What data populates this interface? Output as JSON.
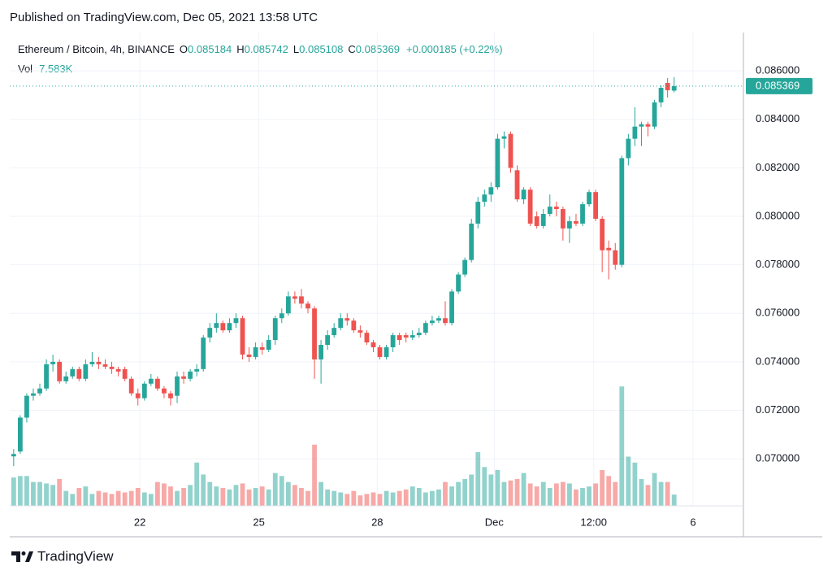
{
  "header": {
    "published": "Published on TradingView.com, Dec 05, 2021 13:58 UTC",
    "brand": "TradingView"
  },
  "chart_data": {
    "type": "candlestick",
    "legend": {
      "symbol": "Ethereum / Bitcoin, 4h, BINANCE",
      "open_label": "O",
      "open": 0.085184,
      "high_label": "H",
      "high": 0.085742,
      "low_label": "L",
      "low": 0.085108,
      "close_label": "C",
      "close": 0.085369,
      "change": "+0.000185 (+0.22%)",
      "volume_label": "Vol",
      "volume": "7.583K"
    },
    "up_color": "#26a69a",
    "down_color": "#ef5350",
    "xlim": [
      -0.6,
      111.6
    ],
    "xticks": [
      {
        "value": 19.3,
        "label": "22"
      },
      {
        "value": 37.5,
        "label": "25"
      },
      {
        "value": 55.6,
        "label": "28"
      },
      {
        "value": 73.5,
        "label": "Dec"
      },
      {
        "value": 88.7,
        "label": "12:00"
      },
      {
        "value": 103.9,
        "label": "6"
      }
    ],
    "ylim": [
      0.06806,
      0.08758
    ],
    "yticks": [
      {
        "value": 0.07,
        "label": "0.070000"
      },
      {
        "value": 0.072,
        "label": "0.072000"
      },
      {
        "value": 0.074,
        "label": "0.074000"
      },
      {
        "value": 0.076,
        "label": "0.076000"
      },
      {
        "value": 0.078,
        "label": "0.078000"
      },
      {
        "value": 0.08,
        "label": "0.080000"
      },
      {
        "value": 0.082,
        "label": "0.082000"
      },
      {
        "value": 0.084,
        "label": "0.084000"
      },
      {
        "value": 0.086,
        "label": "0.086000"
      }
    ],
    "grid": true,
    "volume_ylim": [
      0,
      85
    ],
    "open": [
      0.0701,
      0.0703,
      0.0717,
      0.0726,
      0.0727,
      0.0729,
      0.0739,
      0.074,
      0.0732,
      0.0734,
      0.0737,
      0.0733,
      0.0739,
      0.074,
      0.0739,
      0.0738,
      0.0737,
      0.0737,
      0.0733,
      0.0727,
      0.0725,
      0.0731,
      0.0733,
      0.0729,
      0.0727,
      0.0726,
      0.0734,
      0.0733,
      0.0736,
      0.0737,
      0.075,
      0.0754,
      0.0756,
      0.0753,
      0.0756,
      0.0758,
      0.0743,
      0.0742,
      0.0746,
      0.0745,
      0.0749,
      0.0758,
      0.076,
      0.0767,
      0.0767,
      0.0764,
      0.0762,
      0.0741,
      0.0747,
      0.0751,
      0.0754,
      0.0758,
      0.0757,
      0.0753,
      0.0752,
      0.0748,
      0.0746,
      0.0742,
      0.0746,
      0.0751,
      0.0751,
      0.075,
      0.0751,
      0.0752,
      0.0756,
      0.0757,
      0.0758,
      0.0756,
      0.0769,
      0.0776,
      0.0782,
      0.0797,
      0.0806,
      0.0809,
      0.0812,
      0.0832,
      0.0834,
      0.0819,
      0.0807,
      0.0811,
      0.08,
      0.0796,
      0.0801,
      0.0804,
      0.0803,
      0.0795,
      0.0798,
      0.0797,
      0.0805,
      0.081,
      0.0799,
      0.0787,
      0.0786,
      0.078,
      0.0824,
      0.0832,
      0.0837,
      0.0838,
      0.0837,
      0.0847,
      0.0855,
      0.085184
    ],
    "high": [
      0.0704,
      0.0718,
      0.0727,
      0.0729,
      0.0731,
      0.0741,
      0.0743,
      0.0741,
      0.0736,
      0.0738,
      0.0738,
      0.0741,
      0.0744,
      0.0742,
      0.0741,
      0.074,
      0.0738,
      0.0738,
      0.0734,
      0.0729,
      0.0732,
      0.0735,
      0.0734,
      0.073,
      0.0728,
      0.0736,
      0.0736,
      0.0737,
      0.0739,
      0.0751,
      0.0756,
      0.076,
      0.0757,
      0.0758,
      0.076,
      0.0759,
      0.0746,
      0.0748,
      0.0748,
      0.0751,
      0.0759,
      0.0762,
      0.0769,
      0.0769,
      0.077,
      0.0765,
      0.0763,
      0.0749,
      0.0753,
      0.0756,
      0.076,
      0.076,
      0.0758,
      0.0755,
      0.0753,
      0.0749,
      0.0747,
      0.0747,
      0.0752,
      0.0752,
      0.0752,
      0.0753,
      0.0754,
      0.0757,
      0.0759,
      0.0759,
      0.0765,
      0.077,
      0.0777,
      0.0783,
      0.0799,
      0.0808,
      0.0811,
      0.0814,
      0.0834,
      0.0835,
      0.0835,
      0.0821,
      0.0812,
      0.0812,
      0.0802,
      0.0803,
      0.0809,
      0.0806,
      0.0804,
      0.08,
      0.0801,
      0.0806,
      0.0811,
      0.0811,
      0.08,
      0.079,
      0.0789,
      0.0825,
      0.0834,
      0.0845,
      0.0839,
      0.0839,
      0.0848,
      0.0854,
      0.0857,
      0.085742
    ],
    "low": [
      0.0697,
      0.0702,
      0.0715,
      0.0724,
      0.0726,
      0.0728,
      0.0736,
      0.0731,
      0.0731,
      0.0733,
      0.0732,
      0.0732,
      0.0738,
      0.0737,
      0.0737,
      0.0735,
      0.0734,
      0.0732,
      0.0726,
      0.0722,
      0.0724,
      0.073,
      0.0728,
      0.0725,
      0.0722,
      0.0723,
      0.0731,
      0.0732,
      0.0734,
      0.0736,
      0.0748,
      0.0752,
      0.0752,
      0.0752,
      0.0754,
      0.0741,
      0.074,
      0.0741,
      0.0743,
      0.0744,
      0.0747,
      0.0756,
      0.0759,
      0.0764,
      0.0762,
      0.076,
      0.0733,
      0.0731,
      0.0745,
      0.075,
      0.0753,
      0.0755,
      0.0752,
      0.075,
      0.0747,
      0.0744,
      0.0741,
      0.0741,
      0.0744,
      0.0747,
      0.0748,
      0.0749,
      0.075,
      0.0751,
      0.0755,
      0.0756,
      0.0755,
      0.0755,
      0.0768,
      0.0775,
      0.0781,
      0.0795,
      0.0804,
      0.0806,
      0.0811,
      0.0828,
      0.0818,
      0.0806,
      0.0805,
      0.0796,
      0.0795,
      0.0795,
      0.08,
      0.08,
      0.079,
      0.0789,
      0.0796,
      0.0796,
      0.0804,
      0.0798,
      0.0777,
      0.0774,
      0.0778,
      0.0779,
      0.0821,
      0.0829,
      0.0829,
      0.0833,
      0.0836,
      0.0845,
      0.0849,
      0.085108
    ],
    "close": [
      0.0702,
      0.0717,
      0.0726,
      0.0727,
      0.0729,
      0.0739,
      0.074,
      0.0732,
      0.0734,
      0.0737,
      0.0733,
      0.0739,
      0.074,
      0.0739,
      0.0738,
      0.0737,
      0.0736,
      0.0733,
      0.0727,
      0.0725,
      0.0731,
      0.0733,
      0.0729,
      0.0727,
      0.0725,
      0.0734,
      0.0733,
      0.0736,
      0.0737,
      0.075,
      0.0754,
      0.0756,
      0.0753,
      0.0756,
      0.0758,
      0.0743,
      0.0742,
      0.0746,
      0.0745,
      0.0749,
      0.0758,
      0.076,
      0.0767,
      0.0766,
      0.0764,
      0.0762,
      0.0741,
      0.0747,
      0.0751,
      0.0754,
      0.0758,
      0.0757,
      0.0753,
      0.0752,
      0.0748,
      0.0746,
      0.0742,
      0.0746,
      0.0751,
      0.0749,
      0.075,
      0.0751,
      0.0752,
      0.0756,
      0.0757,
      0.0758,
      0.0756,
      0.0769,
      0.0776,
      0.0782,
      0.0797,
      0.0806,
      0.0809,
      0.0812,
      0.0832,
      0.0833,
      0.082,
      0.0807,
      0.0811,
      0.0797,
      0.0796,
      0.0801,
      0.0804,
      0.0803,
      0.0795,
      0.0798,
      0.0797,
      0.0805,
      0.081,
      0.0799,
      0.0786,
      0.0786,
      0.078,
      0.0824,
      0.0832,
      0.0837,
      0.0838,
      0.0837,
      0.0847,
      0.0853,
      0.0852,
      0.085369
    ],
    "volumes": [
      19,
      20,
      20,
      16,
      16,
      15,
      14,
      18,
      10,
      8,
      12,
      13,
      8,
      10,
      9,
      8,
      10,
      9,
      10,
      12,
      9,
      8,
      16,
      15,
      13,
      10,
      12,
      14,
      29,
      21,
      16,
      13,
      12,
      11,
      14,
      15,
      11,
      12,
      13,
      11,
      22,
      20,
      16,
      14,
      12,
      10,
      41,
      16,
      11,
      10,
      9,
      8,
      10,
      7,
      8,
      9,
      8,
      10,
      9,
      10,
      11,
      13,
      12,
      9,
      10,
      11,
      16,
      13,
      16,
      18,
      21,
      36,
      26,
      21,
      24,
      16,
      17,
      18,
      22,
      15,
      13,
      16,
      12,
      15,
      16,
      15,
      11,
      12,
      13,
      15,
      24,
      20,
      16,
      80,
      33,
      29,
      18,
      14,
      22,
      16,
      16,
      7.583
    ]
  }
}
